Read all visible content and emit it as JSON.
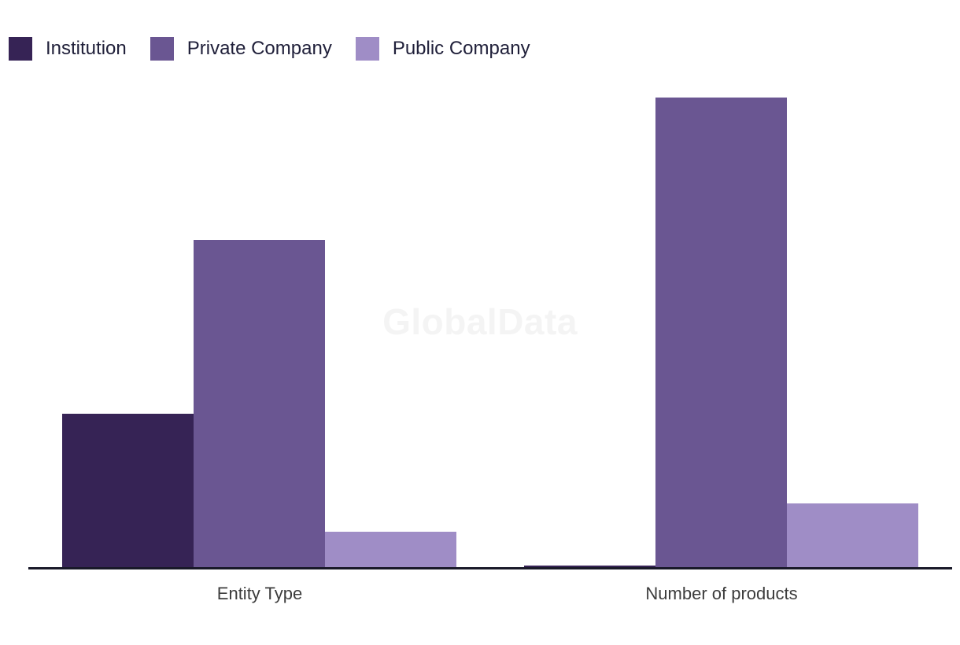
{
  "chart_data": {
    "type": "bar",
    "categories": [
      "Entity Type",
      "Number of products"
    ],
    "series": [
      {
        "name": "Institution",
        "color": "#362355",
        "values": [
          32.9,
          0.7
        ]
      },
      {
        "name": "Private Company",
        "color": "#6A5692",
        "values": [
          69.8,
          100
        ]
      },
      {
        "name": "Public Company",
        "color": "#9F8DC6",
        "values": [
          7.8,
          13.9
        ]
      }
    ],
    "title": "",
    "xlabel": "",
    "ylabel": "",
    "ylim": [
      0,
      100
    ],
    "unit": "relative height (tallest bar = 100; chart shows no y-axis, gridlines or value labels)",
    "grid": false,
    "legend_position": "top-left",
    "watermark": "GlobalData",
    "colors": {
      "axis_line": "#191929",
      "category_label_text": "#3C3C3C",
      "legend_text": "#20203A",
      "watermark_text": "#F4F4F4",
      "background": "#FFFFFF"
    }
  }
}
